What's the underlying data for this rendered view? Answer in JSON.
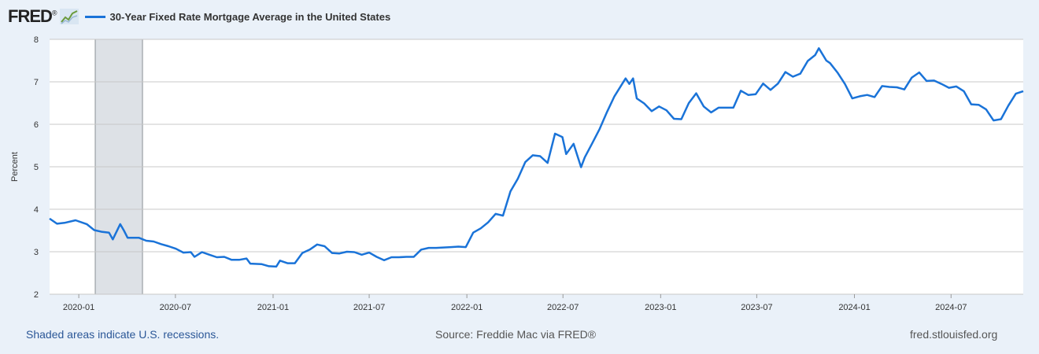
{
  "header": {
    "logo_text": "FRED",
    "logo_registered": "®",
    "legend_label": "30-Year Fixed Rate Mortgage Average in the United States"
  },
  "footer": {
    "recession_note": "Shaded areas indicate U.S. recessions.",
    "source": "Source: Freddie Mac via FRED®",
    "site": "fred.stlouisfed.org"
  },
  "colors": {
    "line": "#1a73d8",
    "recession": "#dde1e6",
    "grid": "#c8c8c8",
    "plot_bg": "#ffffff",
    "page_bg": "#eaf1f9"
  },
  "chart_data": {
    "type": "line",
    "title": "30-Year Fixed Rate Mortgage Average in the United States",
    "ylabel": "Percent",
    "xlabel": "",
    "ylim": [
      2,
      8
    ],
    "xlim": [
      "2019-11-07",
      "2024-11-14"
    ],
    "yticks": [
      "2",
      "3",
      "4",
      "5",
      "6",
      "7",
      "8"
    ],
    "xticks": [
      {
        "date": "2020-01-01",
        "label": "2020-01"
      },
      {
        "date": "2020-07-01",
        "label": "2020-07"
      },
      {
        "date": "2021-01-01",
        "label": "2021-01"
      },
      {
        "date": "2021-07-01",
        "label": "2021-07"
      },
      {
        "date": "2022-01-01",
        "label": "2022-01"
      },
      {
        "date": "2022-07-01",
        "label": "2022-07"
      },
      {
        "date": "2023-01-01",
        "label": "2023-01"
      },
      {
        "date": "2023-07-01",
        "label": "2023-07"
      },
      {
        "date": "2024-01-01",
        "label": "2024-01"
      },
      {
        "date": "2024-07-01",
        "label": "2024-07"
      }
    ],
    "grid": true,
    "recessions": [
      {
        "start": "2020-02-01",
        "end": "2020-04-30"
      }
    ],
    "series": [
      {
        "points": [
          [
            "2019-11-07",
            3.78
          ],
          [
            "2019-11-21",
            3.66
          ],
          [
            "2019-12-05",
            3.68
          ],
          [
            "2019-12-26",
            3.74
          ],
          [
            "2020-01-16",
            3.65
          ],
          [
            "2020-01-30",
            3.51
          ],
          [
            "2020-02-13",
            3.47
          ],
          [
            "2020-02-27",
            3.45
          ],
          [
            "2020-03-05",
            3.29
          ],
          [
            "2020-03-19",
            3.65
          ],
          [
            "2020-03-26",
            3.5
          ],
          [
            "2020-04-02",
            3.33
          ],
          [
            "2020-04-23",
            3.33
          ],
          [
            "2020-05-07",
            3.26
          ],
          [
            "2020-05-21",
            3.24
          ],
          [
            "2020-06-04",
            3.18
          ],
          [
            "2020-06-18",
            3.13
          ],
          [
            "2020-07-02",
            3.07
          ],
          [
            "2020-07-16",
            2.98
          ],
          [
            "2020-07-30",
            2.99
          ],
          [
            "2020-08-06",
            2.88
          ],
          [
            "2020-08-20",
            2.99
          ],
          [
            "2020-09-03",
            2.93
          ],
          [
            "2020-09-17",
            2.87
          ],
          [
            "2020-10-01",
            2.88
          ],
          [
            "2020-10-15",
            2.81
          ],
          [
            "2020-10-29",
            2.81
          ],
          [
            "2020-11-12",
            2.84
          ],
          [
            "2020-11-19",
            2.72
          ],
          [
            "2020-12-10",
            2.71
          ],
          [
            "2020-12-24",
            2.66
          ],
          [
            "2021-01-07",
            2.65
          ],
          [
            "2021-01-14",
            2.79
          ],
          [
            "2021-01-28",
            2.73
          ],
          [
            "2021-02-11",
            2.73
          ],
          [
            "2021-02-25",
            2.97
          ],
          [
            "2021-03-11",
            3.05
          ],
          [
            "2021-03-25",
            3.17
          ],
          [
            "2021-04-08",
            3.13
          ],
          [
            "2021-04-22",
            2.97
          ],
          [
            "2021-05-06",
            2.96
          ],
          [
            "2021-05-20",
            3.0
          ],
          [
            "2021-06-03",
            2.99
          ],
          [
            "2021-06-17",
            2.93
          ],
          [
            "2021-07-01",
            2.98
          ],
          [
            "2021-07-15",
            2.88
          ],
          [
            "2021-07-29",
            2.8
          ],
          [
            "2021-08-12",
            2.87
          ],
          [
            "2021-08-26",
            2.87
          ],
          [
            "2021-09-09",
            2.88
          ],
          [
            "2021-09-23",
            2.88
          ],
          [
            "2021-10-07",
            3.05
          ],
          [
            "2021-10-21",
            3.09
          ],
          [
            "2021-11-04",
            3.09
          ],
          [
            "2021-11-18",
            3.1
          ],
          [
            "2021-12-02",
            3.11
          ],
          [
            "2021-12-16",
            3.12
          ],
          [
            "2021-12-30",
            3.11
          ],
          [
            "2022-01-13",
            3.45
          ],
          [
            "2022-01-27",
            3.55
          ],
          [
            "2022-02-10",
            3.69
          ],
          [
            "2022-02-24",
            3.89
          ],
          [
            "2022-03-10",
            3.85
          ],
          [
            "2022-03-24",
            4.42
          ],
          [
            "2022-04-07",
            4.72
          ],
          [
            "2022-04-21",
            5.11
          ],
          [
            "2022-05-05",
            5.27
          ],
          [
            "2022-05-19",
            5.25
          ],
          [
            "2022-06-02",
            5.09
          ],
          [
            "2022-06-16",
            5.78
          ],
          [
            "2022-06-30",
            5.7
          ],
          [
            "2022-07-07",
            5.3
          ],
          [
            "2022-07-21",
            5.54
          ],
          [
            "2022-08-04",
            4.99
          ],
          [
            "2022-08-11",
            5.22
          ],
          [
            "2022-08-25",
            5.55
          ],
          [
            "2022-09-08",
            5.89
          ],
          [
            "2022-09-22",
            6.29
          ],
          [
            "2022-10-06",
            6.66
          ],
          [
            "2022-10-20",
            6.94
          ],
          [
            "2022-10-27",
            7.08
          ],
          [
            "2022-11-03",
            6.95
          ],
          [
            "2022-11-10",
            7.08
          ],
          [
            "2022-11-17",
            6.61
          ],
          [
            "2022-12-01",
            6.49
          ],
          [
            "2022-12-15",
            6.31
          ],
          [
            "2022-12-29",
            6.42
          ],
          [
            "2023-01-12",
            6.33
          ],
          [
            "2023-01-26",
            6.13
          ],
          [
            "2023-02-09",
            6.12
          ],
          [
            "2023-02-23",
            6.5
          ],
          [
            "2023-03-09",
            6.73
          ],
          [
            "2023-03-23",
            6.42
          ],
          [
            "2023-04-06",
            6.28
          ],
          [
            "2023-04-20",
            6.39
          ],
          [
            "2023-05-04",
            6.39
          ],
          [
            "2023-05-18",
            6.39
          ],
          [
            "2023-06-01",
            6.79
          ],
          [
            "2023-06-15",
            6.69
          ],
          [
            "2023-06-29",
            6.71
          ],
          [
            "2023-07-13",
            6.96
          ],
          [
            "2023-07-27",
            6.81
          ],
          [
            "2023-08-10",
            6.96
          ],
          [
            "2023-08-24",
            7.23
          ],
          [
            "2023-09-07",
            7.12
          ],
          [
            "2023-09-21",
            7.19
          ],
          [
            "2023-10-05",
            7.49
          ],
          [
            "2023-10-19",
            7.63
          ],
          [
            "2023-10-26",
            7.79
          ],
          [
            "2023-11-09",
            7.5
          ],
          [
            "2023-11-16",
            7.44
          ],
          [
            "2023-11-30",
            7.22
          ],
          [
            "2023-12-14",
            6.95
          ],
          [
            "2023-12-28",
            6.61
          ],
          [
            "2024-01-11",
            6.66
          ],
          [
            "2024-01-25",
            6.69
          ],
          [
            "2024-02-08",
            6.64
          ],
          [
            "2024-02-22",
            6.9
          ],
          [
            "2024-03-07",
            6.88
          ],
          [
            "2024-03-21",
            6.87
          ],
          [
            "2024-04-04",
            6.82
          ],
          [
            "2024-04-18",
            7.1
          ],
          [
            "2024-05-02",
            7.22
          ],
          [
            "2024-05-16",
            7.02
          ],
          [
            "2024-05-30",
            7.03
          ],
          [
            "2024-06-13",
            6.95
          ],
          [
            "2024-06-27",
            6.86
          ],
          [
            "2024-07-11",
            6.89
          ],
          [
            "2024-07-25",
            6.78
          ],
          [
            "2024-08-08",
            6.47
          ],
          [
            "2024-08-22",
            6.46
          ],
          [
            "2024-09-05",
            6.35
          ],
          [
            "2024-09-19",
            6.09
          ],
          [
            "2024-10-03",
            6.12
          ],
          [
            "2024-10-17",
            6.44
          ],
          [
            "2024-10-31",
            6.72
          ],
          [
            "2024-11-14",
            6.78
          ]
        ]
      }
    ]
  }
}
